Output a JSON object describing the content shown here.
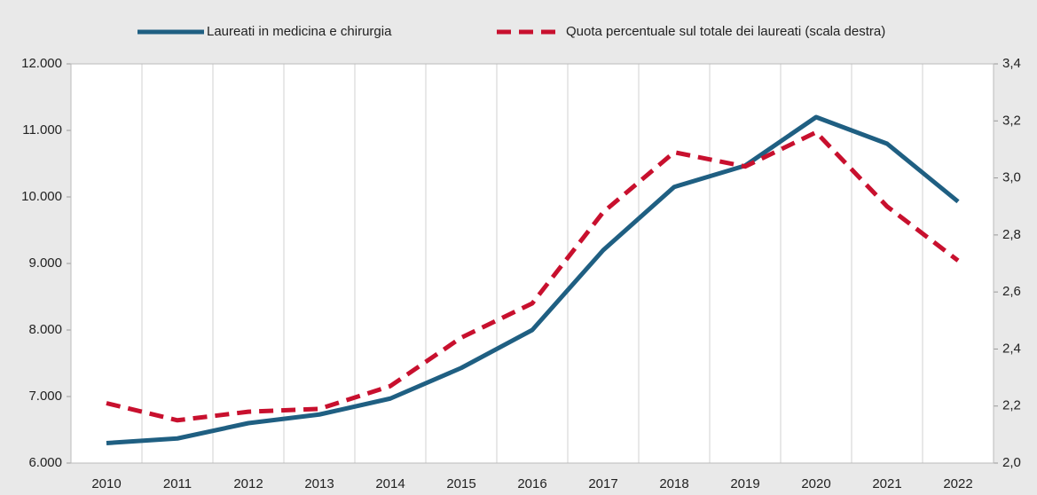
{
  "chart_data": {
    "type": "line",
    "categories": [
      "2010",
      "2011",
      "2012",
      "2013",
      "2014",
      "2015",
      "2016",
      "2017",
      "2018",
      "2019",
      "2020",
      "2021",
      "2022"
    ],
    "series": [
      {
        "name": "Laureati in medicina e chirurgia",
        "color": "#1f5f82",
        "values": [
          6300,
          6370,
          6600,
          6730,
          6970,
          7430,
          8000,
          9200,
          10150,
          10470,
          11200,
          10800,
          9930
        ]
      },
      {
        "name": "Quota percentuale sul totale dei laureati (scala destra)",
        "color": "#c8102e",
        "axis": "y2",
        "dashed": true,
        "values": [
          2.21,
          2.15,
          2.18,
          2.19,
          2.27,
          2.44,
          2.56,
          2.88,
          3.09,
          3.04,
          3.16,
          2.9,
          2.71
        ]
      }
    ],
    "ylim": [
      6000,
      12000
    ],
    "yticks": [
      {
        "value": 6000,
        "label": "6.000"
      },
      {
        "value": 7000,
        "label": "7.000"
      },
      {
        "value": 8000,
        "label": "8.000"
      },
      {
        "value": 9000,
        "label": "9.000"
      },
      {
        "value": 10000,
        "label": "10.000"
      },
      {
        "value": 11000,
        "label": "11.000"
      },
      {
        "value": 12000,
        "label": "12.000"
      }
    ],
    "y2lim": [
      2.0,
      3.4
    ],
    "y2ticks": [
      {
        "value": 2.0,
        "label": "2,0"
      },
      {
        "value": 2.2,
        "label": "2,2"
      },
      {
        "value": 2.4,
        "label": "2,4"
      },
      {
        "value": 2.6,
        "label": "2,6"
      },
      {
        "value": 2.8,
        "label": "2,8"
      },
      {
        "value": 3.0,
        "label": "3,0"
      },
      {
        "value": 3.2,
        "label": "3,2"
      },
      {
        "value": 3.4,
        "label": "3,4"
      }
    ],
    "legend": "top"
  }
}
